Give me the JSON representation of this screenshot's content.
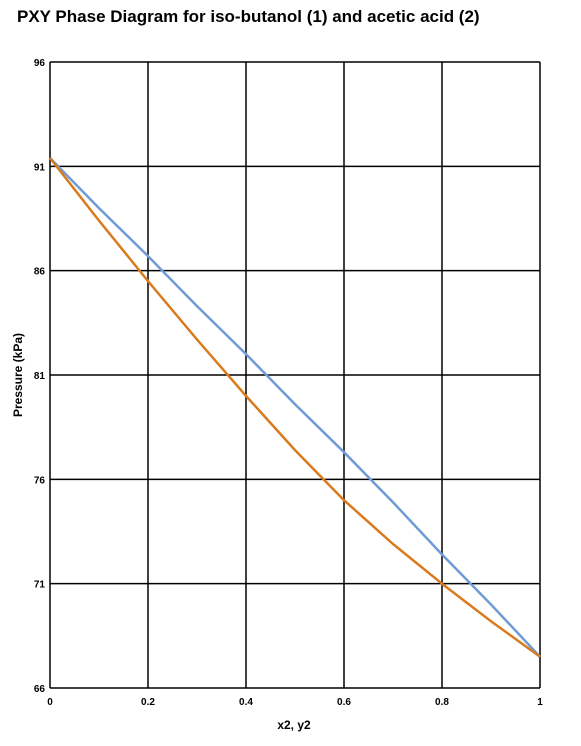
{
  "chart_data": {
    "type": "line",
    "title": "PXY Phase Diagram for iso-butanol (1) and acetic acid (2)",
    "xlabel": "x2, y2",
    "ylabel": "Pressure (kPa)",
    "xlim": [
      0,
      1
    ],
    "ylim": [
      66,
      96
    ],
    "x_ticks": [
      "0",
      "0.2",
      "0.4",
      "0.6",
      "0.8",
      "1"
    ],
    "y_ticks": [
      "66",
      "71",
      "76",
      "81",
      "86",
      "91",
      "96"
    ],
    "grid": true,
    "legend": "none",
    "series": [
      {
        "color": "#6f9bd6",
        "x": [
          0,
          0.1,
          0.2,
          0.3,
          0.4,
          0.5,
          0.6,
          0.7,
          0.8,
          0.9,
          1.0
        ],
        "y": [
          91.4,
          89.0,
          86.7,
          84.3,
          82.0,
          79.6,
          77.3,
          74.9,
          72.4,
          70.0,
          67.5
        ]
      },
      {
        "color": "#d97a1c",
        "x": [
          0,
          0.1,
          0.2,
          0.3,
          0.4,
          0.5,
          0.6,
          0.7,
          0.8,
          0.9,
          1.0
        ],
        "y": [
          91.4,
          88.4,
          85.5,
          82.7,
          80.0,
          77.4,
          75.0,
          72.9,
          71.0,
          69.2,
          67.5
        ]
      }
    ]
  }
}
